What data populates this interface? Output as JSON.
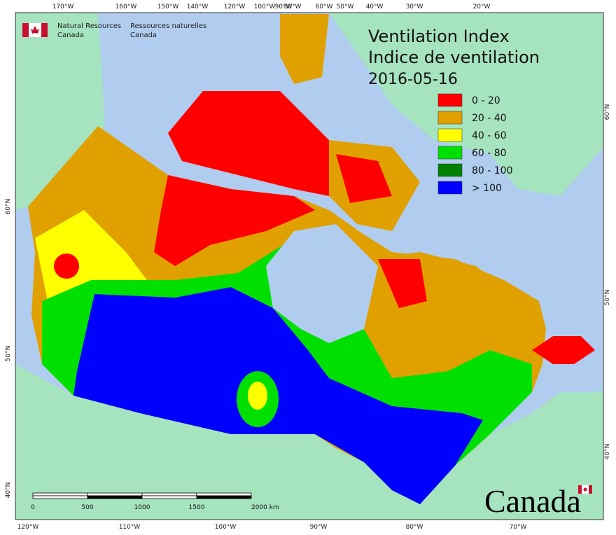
{
  "agency": {
    "en_line1": "Natural Resources",
    "en_line2": "Canada",
    "fr_line1": "Ressources naturelles",
    "fr_line2": "Canada"
  },
  "title": {
    "line1": "Ventilation Index",
    "line2": "Indice de ventilation",
    "date": "2016-05-16"
  },
  "legend": [
    {
      "label": "0 - 20",
      "color": "#ff0000"
    },
    {
      "label": "20 - 40",
      "color": "#e0a000"
    },
    {
      "label": "40 - 60",
      "color": "#ffff00"
    },
    {
      "label": "60 - 80",
      "color": "#00e000"
    },
    {
      "label": "80 - 100",
      "color": "#008000"
    },
    {
      "label": "> 100",
      "color": "#0000ff"
    }
  ],
  "graticule": {
    "top": [
      "170°W",
      "160°W",
      "150°W",
      "140°W",
      "120°W",
      "100°W",
      "90°W",
      "80°W",
      "60°W",
      "50°W",
      "40°W",
      "30°W",
      "20°W"
    ],
    "bottom": [
      "120°W",
      "110°W",
      "100°W",
      "90°W",
      "80°W",
      "70°W"
    ],
    "left": [
      "60°N",
      "50°N",
      "40°N"
    ],
    "right": [
      "60°N",
      "50°N",
      "40°N"
    ]
  },
  "scale_bar": {
    "labels": [
      "0",
      "500",
      "1000",
      "1500",
      "2000 km"
    ]
  },
  "wordmark": "Canada"
}
